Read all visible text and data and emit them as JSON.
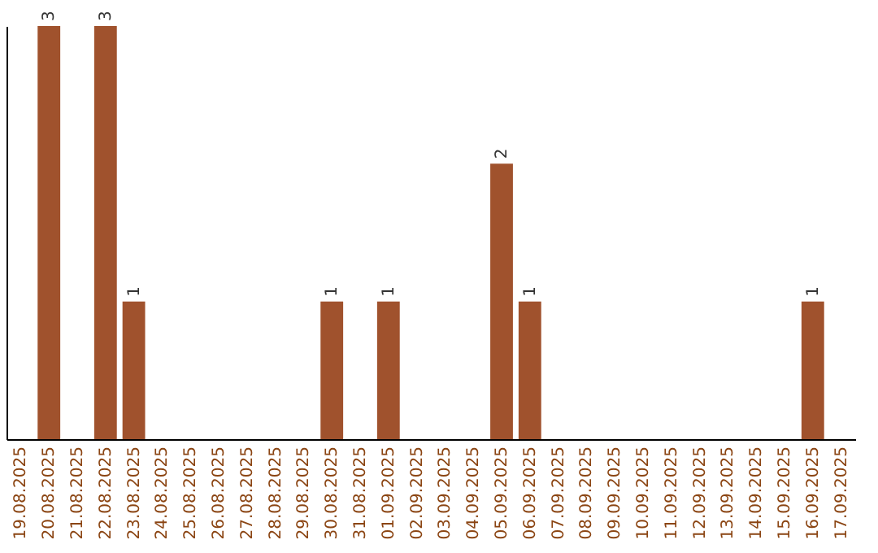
{
  "chart_data": {
    "type": "bar",
    "categories": [
      "19.08.2025",
      "20.08.2025",
      "21.08.2025",
      "22.08.2025",
      "23.08.2025",
      "24.08.2025",
      "25.08.2025",
      "26.08.2025",
      "27.08.2025",
      "28.08.2025",
      "29.08.2025",
      "30.08.2025",
      "31.08.2025",
      "01.09.2025",
      "02.09.2025",
      "03.09.2025",
      "04.09.2025",
      "05.09.2025",
      "06.09.2025",
      "07.09.2025",
      "08.09.2025",
      "09.09.2025",
      "10.09.2025",
      "11.09.2025",
      "12.09.2025",
      "13.09.2025",
      "14.09.2025",
      "15.09.2025",
      "16.09.2025",
      "17.09.2025"
    ],
    "values": [
      0,
      3,
      0,
      3,
      1,
      0,
      0,
      0,
      0,
      0,
      0,
      1,
      0,
      1,
      0,
      0,
      0,
      2,
      1,
      0,
      0,
      0,
      0,
      0,
      0,
      0,
      0,
      0,
      1,
      0
    ],
    "value_labels": [
      null,
      "3",
      null,
      "3",
      "1",
      null,
      null,
      null,
      null,
      null,
      null,
      "1",
      null,
      "1",
      null,
      null,
      null,
      "2",
      "1",
      null,
      null,
      null,
      null,
      null,
      null,
      null,
      null,
      null,
      "1",
      null
    ],
    "color": "#a0522d",
    "grid": false,
    "tick_labels": "x"
  }
}
